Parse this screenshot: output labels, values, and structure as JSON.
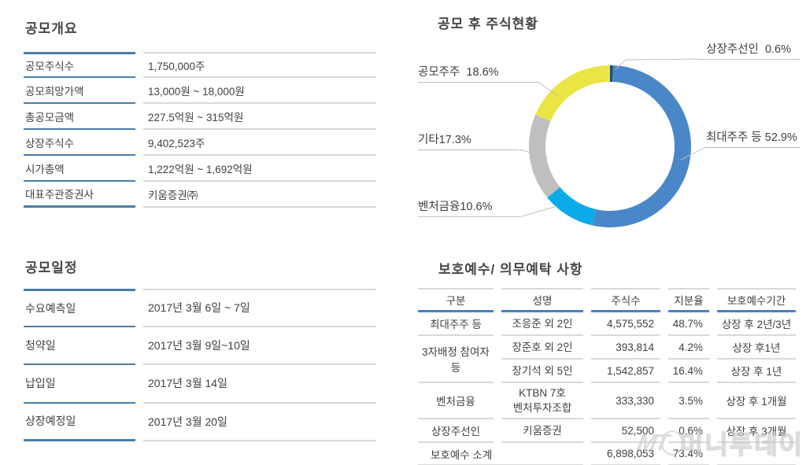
{
  "overview": {
    "title": "공모개요",
    "rows": [
      {
        "label": "공모주식수",
        "value": "1,750,000주"
      },
      {
        "label": "공모희망가액",
        "value": "13,000원 ~ 18,000원"
      },
      {
        "label": "총공모금액",
        "value": "227.5억원 ~ 315억원"
      },
      {
        "label": "상장주식수",
        "value": "9,402,523주"
      },
      {
        "label": "시가총액",
        "value": "1,222억원 ~ 1,692억원"
      },
      {
        "label": "대표주관증권사",
        "value": "키움증권㈜"
      }
    ]
  },
  "schedule": {
    "title": "공모일정",
    "rows": [
      {
        "label": "수요예측일",
        "value": "2017년 3월 6일 ~ 7일"
      },
      {
        "label": "청약일",
        "value": "2017년 3월 9일~10일"
      },
      {
        "label": "납입일",
        "value": "2017년 3월 14일"
      },
      {
        "label": "상장예정일",
        "value": "2017년 3월 20일"
      }
    ]
  },
  "chart_data": {
    "type": "pie",
    "subtype": "donut",
    "title": "공모 후 주식현황",
    "start_angle_deg": 0,
    "direction": "clockwise",
    "series": [
      {
        "name": "상장주선인",
        "value": 0.6,
        "color": "#1F4E79",
        "callout": "상장주선인  0.6%"
      },
      {
        "name": "최대주주 등",
        "value": 52.9,
        "color": "#4A87C8",
        "callout": "최대주주 등 52.9%"
      },
      {
        "name": "벤처금융",
        "value": 10.6,
        "color": "#09ABE8",
        "callout": "벤처금융10.6%"
      },
      {
        "name": "기타",
        "value": 17.3,
        "color": "#BFBFBF",
        "callout": "기타17.3%"
      },
      {
        "name": "공모주주",
        "value": 18.6,
        "color": "#EAE545",
        "callout": "공모주주  18.6%"
      }
    ]
  },
  "lockup": {
    "title": "보호예수/ 의무예탁 사항",
    "headers": [
      "구분",
      "성명",
      "주식수",
      "지분율",
      "보호예수기간"
    ],
    "rows": [
      {
        "group": "최대주주 등",
        "name": "조응준 외 2인",
        "shares": "4,575,552",
        "ratio": "48.7%",
        "period": "상장 후 2년/3년"
      },
      {
        "group": "3자배정 참여자 등",
        "name": "장준호 외 2인",
        "shares": "393,814",
        "ratio": "4.2%",
        "period": "상장 후1년"
      },
      {
        "name": "장기석 외 5인",
        "shares": "1,542,857",
        "ratio": "16.4%",
        "period": "상장 후 1년"
      },
      {
        "group": "벤처금융",
        "name": "KTBN 7호\n벤처투자조합",
        "shares": "333,330",
        "ratio": "3.5%",
        "period": "상장 후 1개월"
      },
      {
        "group": "상장주선인",
        "name": "키움증권",
        "shares": "52,500",
        "ratio": "0.6%",
        "period": "상장  후 3개월"
      }
    ],
    "subtotal": {
      "label": "보호예수 소계",
      "shares": "6,898,053",
      "ratio": "73.4%",
      "period": ""
    }
  },
  "watermark": {
    "mt": "MT",
    "text": "머니투데이"
  }
}
